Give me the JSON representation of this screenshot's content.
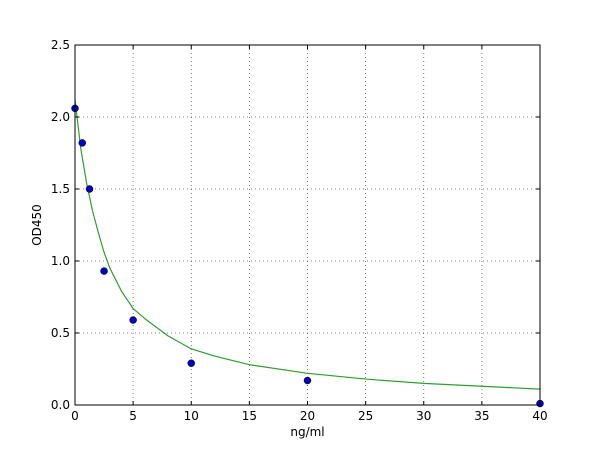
{
  "chart_data": {
    "type": "scatter",
    "title": "",
    "xlabel": "ng/ml",
    "ylabel": "OD450",
    "xlim": [
      0,
      40
    ],
    "ylim": [
      0,
      2.5
    ],
    "x_ticks": [
      0,
      5,
      10,
      15,
      20,
      25,
      30,
      35,
      40
    ],
    "x_tick_labels": [
      "0",
      "5",
      "10",
      "15",
      "20",
      "25",
      "30",
      "35",
      "40"
    ],
    "y_ticks": [
      0,
      0.5,
      1,
      1.5,
      2,
      2.5
    ],
    "y_tick_labels": [
      "0.0",
      "0.5",
      "1.0",
      "1.5",
      "2.0",
      "2.5"
    ],
    "grid": true,
    "series": [
      {
        "kind": "points",
        "color": "#0000bf",
        "x": [
          0,
          0.625,
          1.25,
          2.5,
          5,
          10,
          20,
          40
        ],
        "y": [
          2.06,
          1.82,
          1.5,
          0.93,
          0.59,
          0.29,
          0.17,
          0.01
        ]
      },
      {
        "kind": "fit-curve",
        "color": "#2ca02c",
        "x": [
          0,
          0.5,
          1,
          1.5,
          2,
          2.5,
          3,
          4,
          5,
          6,
          8,
          10,
          12,
          15,
          20,
          25,
          30,
          35,
          40
        ],
        "y": [
          2.12,
          1.78,
          1.54,
          1.35,
          1.2,
          1.06,
          0.95,
          0.79,
          0.67,
          0.6,
          0.48,
          0.39,
          0.34,
          0.28,
          0.22,
          0.18,
          0.15,
          0.13,
          0.11
        ]
      }
    ]
  }
}
